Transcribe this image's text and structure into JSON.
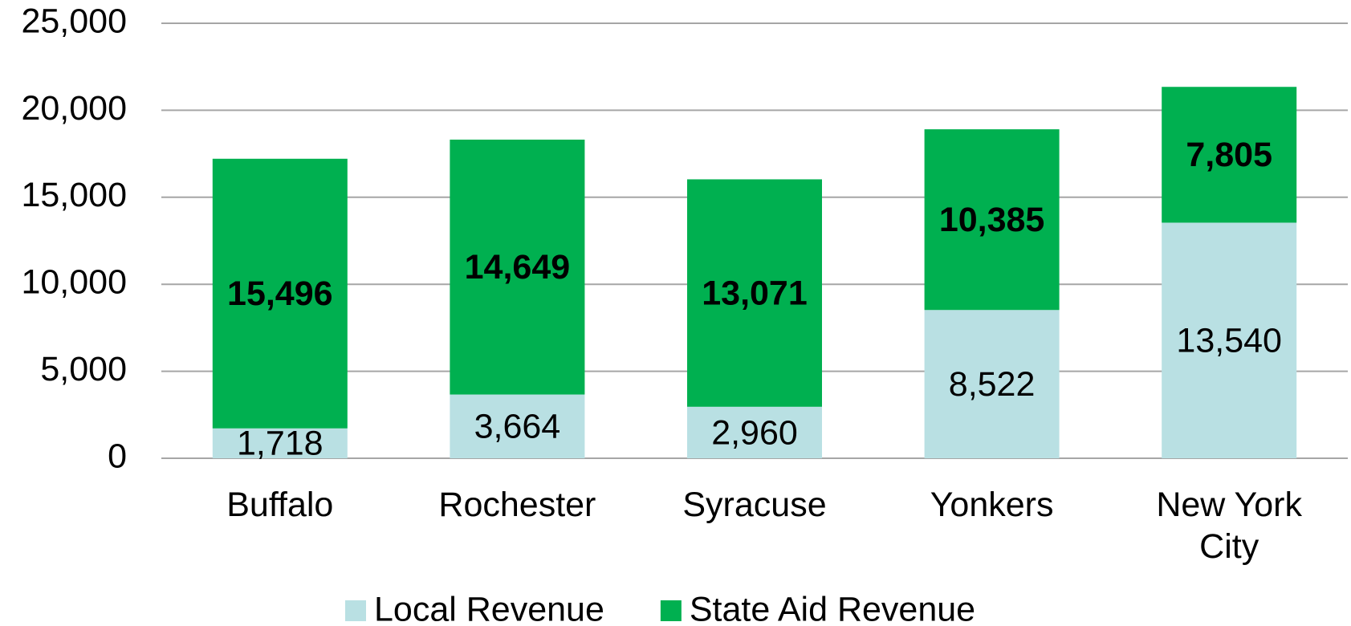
{
  "chart_data": {
    "type": "stacked_bar",
    "categories": [
      "Buffalo",
      "Rochester",
      "Syracuse",
      "Yonkers",
      "New York City"
    ],
    "series": [
      {
        "name": "Local Revenue",
        "color": "#b9e0e3",
        "values": [
          1718,
          3664,
          2960,
          8522,
          13540
        ],
        "value_labels": [
          "1,718",
          "3,664",
          "2,960",
          "8,522",
          "13,540"
        ]
      },
      {
        "name": "State Aid Revenue",
        "color": "#00b050",
        "values": [
          15496,
          14649,
          13071,
          10385,
          7805
        ],
        "value_labels": [
          "15,496",
          "14,649",
          "13,071",
          "10,385",
          "7,805"
        ]
      }
    ],
    "ylim": [
      0,
      25000
    ],
    "yticks": [
      0,
      {
        "value": 5000,
        "label": "5,000"
      },
      {
        "value": 10000,
        "label": "10,000"
      },
      {
        "value": 15000,
        "label": "15,000"
      },
      {
        "value": 20000,
        "label": "20,000"
      },
      {
        "value": 25000,
        "label": "25,000"
      }
    ],
    "grid": true,
    "legend": "bottom"
  }
}
